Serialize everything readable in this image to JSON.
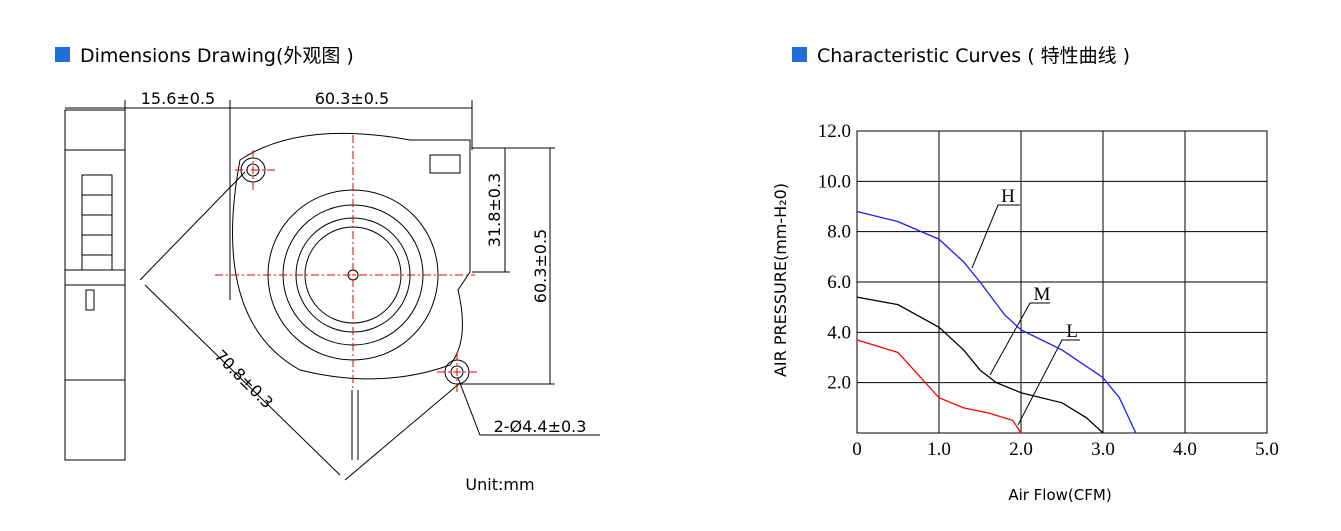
{
  "dimensions": {
    "title": "Dimensions Drawing(外观图 )",
    "labels": [
      "15.6±0.5",
      "60.3±0.5",
      "31.8±0.3",
      "60.3±0.5",
      "70.8±0.3",
      "2-Ø4.4±0.3"
    ],
    "unit": "Unit:mm"
  },
  "chart_data": {
    "type": "line",
    "title": "Characteristic Curves ( 特性曲线 )",
    "x_label": "Air Flow(CFM)",
    "y_label": "AIR PRESSURE(mm-H₂0)",
    "xlim": [
      0,
      5
    ],
    "ylim": [
      0,
      12
    ],
    "xticks": [
      0,
      {
        "value": 1,
        "label": "1.0"
      },
      {
        "value": 2,
        "label": "2.0"
      },
      {
        "value": 3,
        "label": "3.0"
      },
      {
        "value": 4,
        "label": "4.0"
      },
      {
        "value": 5,
        "label": "5.0"
      }
    ],
    "yticks": [
      {
        "value": 2,
        "label": "2.0"
      },
      {
        "value": 4,
        "label": "4.0"
      },
      {
        "value": 6,
        "label": "6.0"
      },
      {
        "value": 8,
        "label": "8.0"
      },
      {
        "value": 10,
        "label": "10.0"
      },
      {
        "value": 12,
        "label": "12.0"
      }
    ],
    "grid": true,
    "series": [
      {
        "name": "H",
        "color": "#1a1aff",
        "x": [
          0,
          0.5,
          1.0,
          1.3,
          1.5,
          1.8,
          2.0,
          2.5,
          3.0,
          3.2,
          3.4
        ],
        "values": [
          8.8,
          8.4,
          7.7,
          6.8,
          6.0,
          4.7,
          4.1,
          3.3,
          2.2,
          1.4,
          0
        ]
      },
      {
        "name": "M",
        "color": "#000000",
        "x": [
          0,
          0.5,
          1.0,
          1.3,
          1.5,
          1.7,
          2.0,
          2.5,
          2.8,
          3.0
        ],
        "values": [
          5.4,
          5.1,
          4.2,
          3.3,
          2.5,
          2.0,
          1.6,
          1.2,
          0.6,
          0
        ]
      },
      {
        "name": "L",
        "color": "#ff0000",
        "x": [
          0,
          0.5,
          1.0,
          1.3,
          1.6,
          1.9,
          2.0
        ],
        "values": [
          3.7,
          3.2,
          1.4,
          1.0,
          0.8,
          0.5,
          0
        ]
      }
    ]
  }
}
